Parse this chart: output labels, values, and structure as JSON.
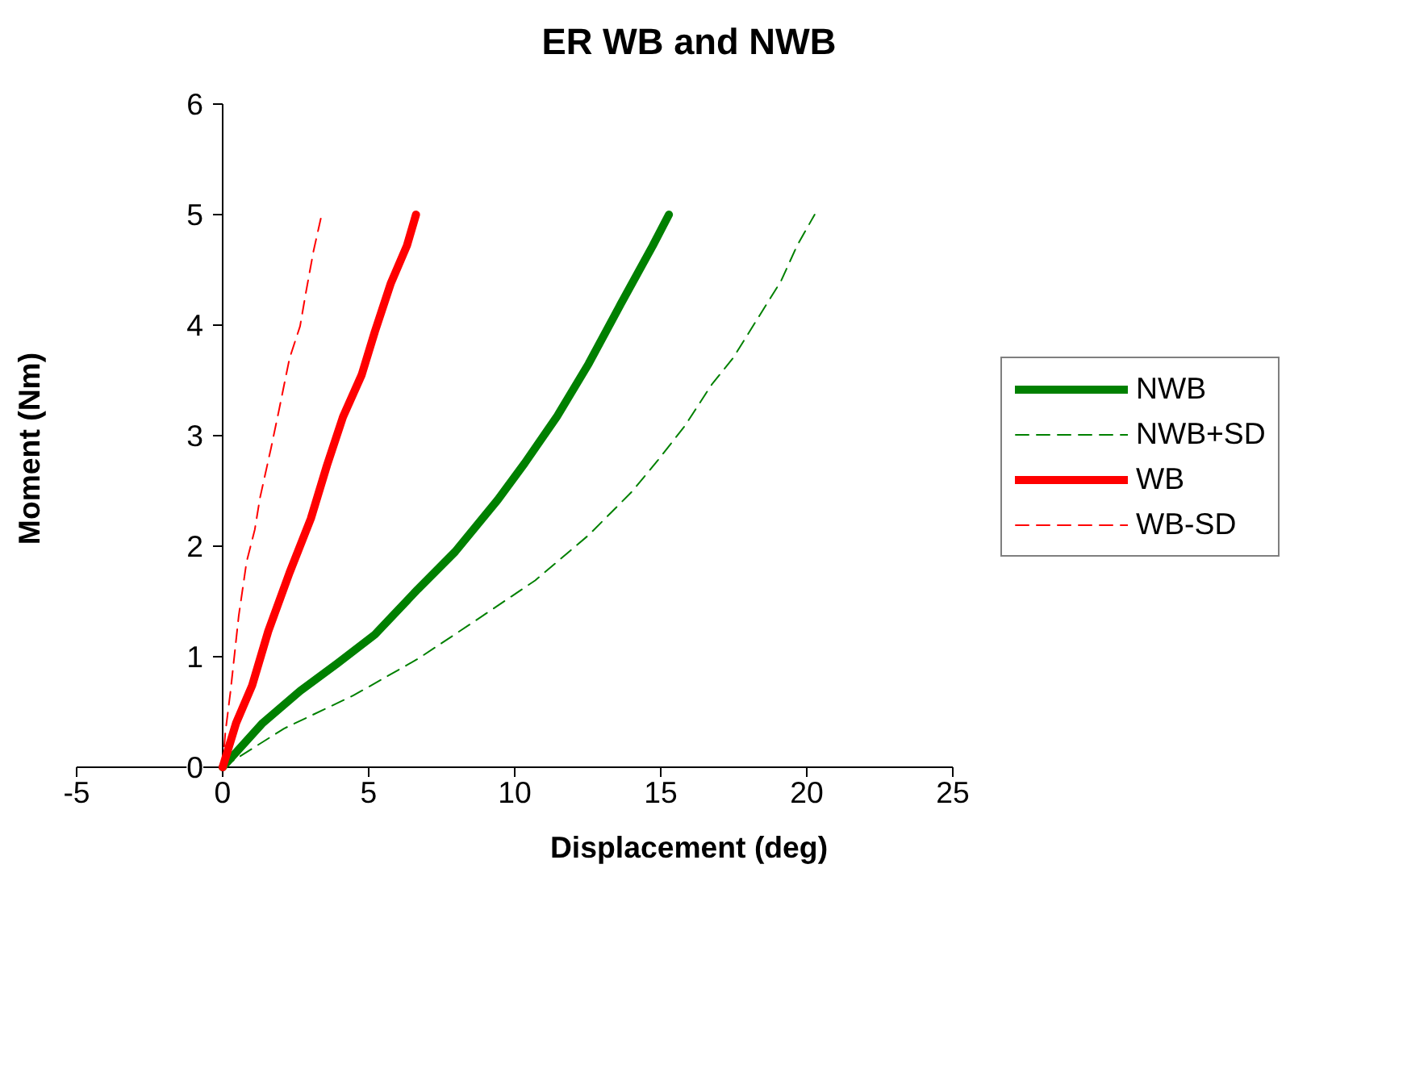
{
  "chart_data": {
    "type": "line",
    "title": "ER WB and NWB",
    "xlabel": "Displacement (deg)",
    "ylabel": "Moment (Nm)",
    "xlim": [
      -5,
      25
    ],
    "xticks": [
      -5,
      0,
      5,
      10,
      15,
      20,
      25
    ],
    "ylim": [
      0,
      6
    ],
    "yticks": [
      0,
      1,
      2,
      3,
      4,
      5,
      6
    ],
    "grid": false,
    "legend": "right",
    "marker": "none",
    "series": [
      {
        "name": "NWB",
        "color": "#008000",
        "line_style": "solid",
        "x": [
          0,
          1.37,
          2.65,
          3.93,
          5.21,
          6.68,
          7.96,
          9.42,
          10.34,
          11.44,
          12.53,
          13.63,
          14.73,
          15.28
        ],
        "values": [
          0,
          0.4,
          0.69,
          0.94,
          1.2,
          1.61,
          1.95,
          2.42,
          2.75,
          3.17,
          3.65,
          4.19,
          4.72,
          5.0
        ]
      },
      {
        "name": "NWB+SD",
        "color": "#008000",
        "line_style": "dashed",
        "x": [
          0,
          2.1,
          4.48,
          6.68,
          8.51,
          10.7,
          12.53,
          14.0,
          14.91,
          15.83,
          16.74,
          17.47,
          18.39,
          19.12,
          19.67,
          20.27
        ],
        "values": [
          0,
          0.35,
          0.65,
          0.98,
          1.3,
          1.69,
          2.1,
          2.49,
          2.78,
          3.09,
          3.46,
          3.7,
          4.09,
          4.4,
          4.72,
          5.0
        ]
      },
      {
        "name": "WB",
        "color": "#ff0000",
        "line_style": "solid",
        "x": [
          0,
          0.46,
          1.01,
          1.56,
          2.29,
          3.02,
          3.57,
          4.12,
          4.76,
          5.21,
          5.76,
          6.31,
          6.62
        ],
        "values": [
          0,
          0.4,
          0.74,
          1.23,
          1.76,
          2.25,
          2.73,
          3.17,
          3.55,
          3.94,
          4.38,
          4.72,
          5.0
        ]
      },
      {
        "name": "WB-SD",
        "color": "#ff0000",
        "line_style": "dashed",
        "x": [
          0,
          0.09,
          0.27,
          0.55,
          0.82,
          1.1,
          1.28,
          1.65,
          1.92,
          2.29,
          2.65,
          2.84,
          3.11,
          3.39
        ],
        "values": [
          0,
          0.31,
          0.69,
          1.37,
          1.86,
          2.15,
          2.44,
          2.88,
          3.22,
          3.7,
          3.99,
          4.28,
          4.67,
          5.0
        ]
      }
    ]
  }
}
